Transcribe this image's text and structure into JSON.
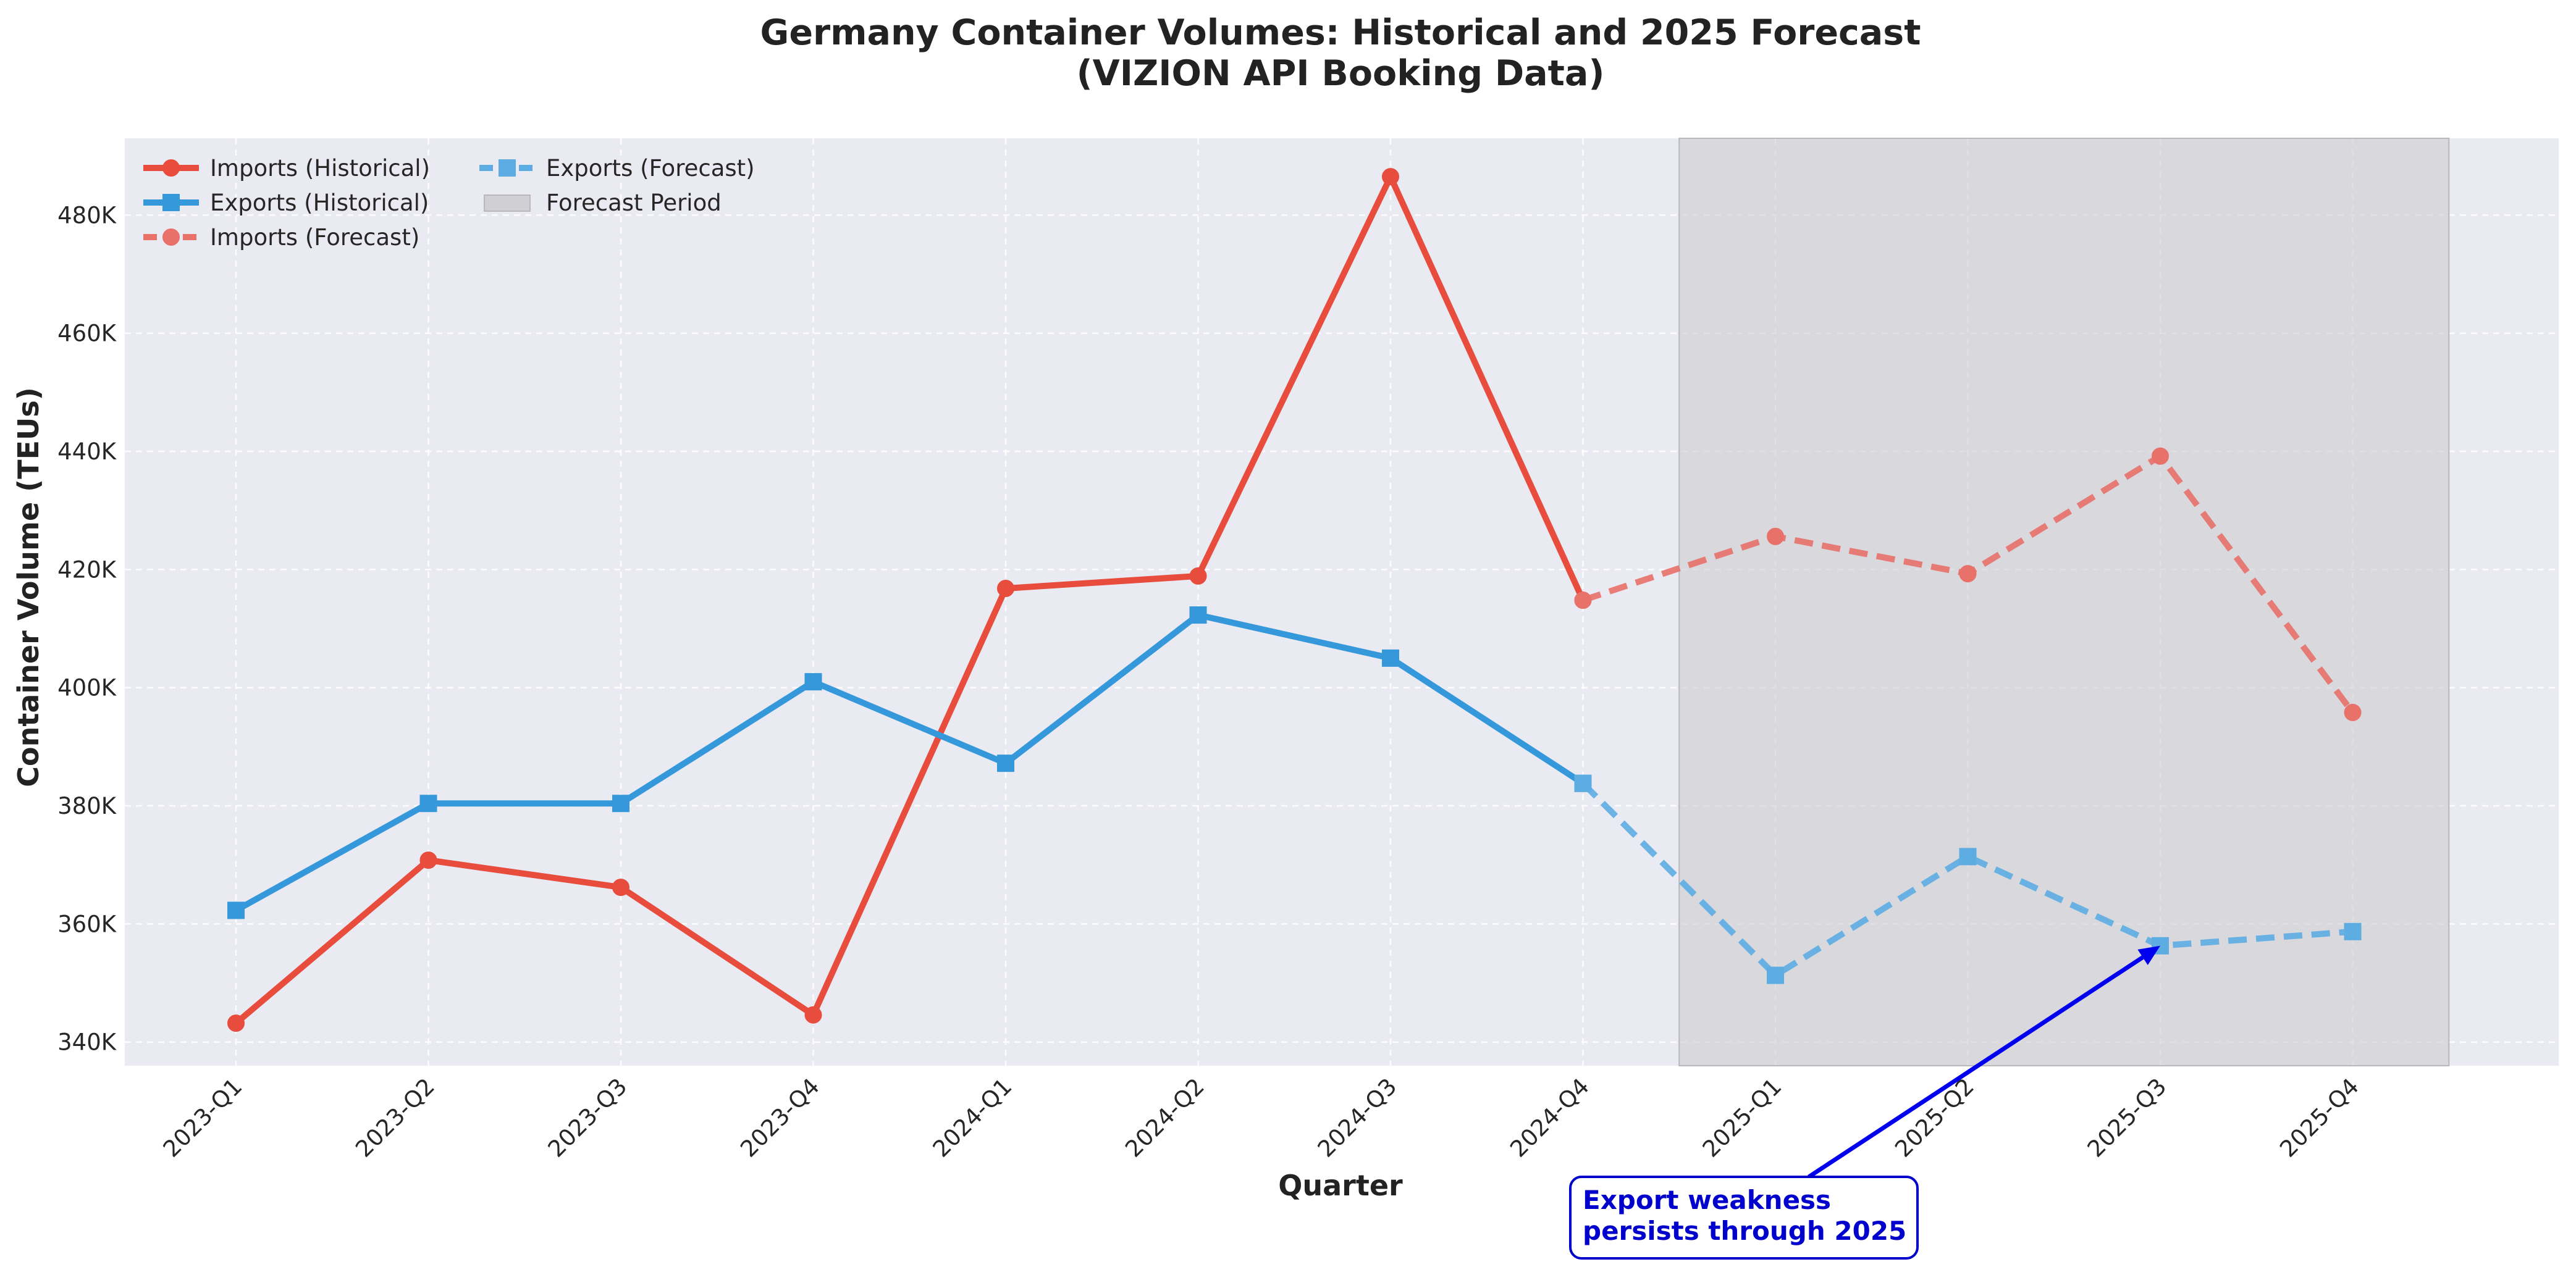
{
  "chart_data": {
    "type": "line",
    "title": "Germany Container Volumes: Historical and 2025 Forecast",
    "subtitle": "(VIZION API Booking Data)",
    "xlabel": "Quarter",
    "ylabel": "Container Volume (TEUs)",
    "categories": [
      "2023-Q1",
      "2023-Q2",
      "2023-Q3",
      "2023-Q4",
      "2024-Q1",
      "2024-Q2",
      "2024-Q3",
      "2024-Q4",
      "2025-Q1",
      "2025-Q2",
      "2025-Q3",
      "2025-Q4"
    ],
    "ylim": [
      336000,
      493000
    ],
    "yticks": [
      340000,
      360000,
      380000,
      400000,
      420000,
      440000,
      460000,
      480000
    ],
    "ytick_labels": [
      "340K",
      "360K",
      "380K",
      "400K",
      "420K",
      "440K",
      "460K",
      "480K"
    ],
    "grid": true,
    "legend_placement": "upper-left",
    "series": [
      {
        "name": "Imports (Historical)",
        "color": "#e74c3c",
        "style": "solid",
        "marker": "circle",
        "x": [
          "2023-Q1",
          "2023-Q2",
          "2023-Q3",
          "2023-Q4",
          "2024-Q1",
          "2024-Q2",
          "2024-Q3",
          "2024-Q4"
        ],
        "values": [
          343200,
          370800,
          366200,
          344600,
          416800,
          418900,
          486500,
          414800
        ]
      },
      {
        "name": "Exports (Historical)",
        "color": "#3498db",
        "style": "solid",
        "marker": "square",
        "x": [
          "2023-Q1",
          "2023-Q2",
          "2023-Q3",
          "2023-Q4",
          "2024-Q1",
          "2024-Q2",
          "2024-Q3",
          "2024-Q4"
        ],
        "values": [
          362300,
          380400,
          380400,
          401000,
          387200,
          412300,
          405000,
          383800
        ]
      },
      {
        "name": "Imports (Forecast)",
        "color": "#e8716a",
        "style": "dashed",
        "marker": "circle",
        "x": [
          "2024-Q4",
          "2025-Q1",
          "2025-Q2",
          "2025-Q3",
          "2025-Q4"
        ],
        "values": [
          414800,
          425600,
          419300,
          439200,
          395800
        ]
      },
      {
        "name": "Exports (Forecast)",
        "color": "#5dade2",
        "style": "dashed",
        "marker": "square",
        "x": [
          "2024-Q4",
          "2025-Q1",
          "2025-Q2",
          "2025-Q3",
          "2025-Q4"
        ],
        "values": [
          383800,
          351300,
          371400,
          356300,
          358700
        ]
      }
    ],
    "forecast_period": {
      "name": "Forecast Period",
      "color": "#c8c8cc",
      "from_category": "2024-Q4",
      "to_category": "2025-Q4"
    },
    "annotation": {
      "lines": [
        "Export weakness",
        "persists through 2025"
      ],
      "target_category": "2025-Q3",
      "target_value": 356300,
      "color": "#0000ee"
    },
    "legend": {
      "entries": [
        "Imports (Historical)",
        "Exports (Historical)",
        "Imports (Forecast)",
        "Exports (Forecast)",
        "Forecast Period"
      ]
    }
  }
}
